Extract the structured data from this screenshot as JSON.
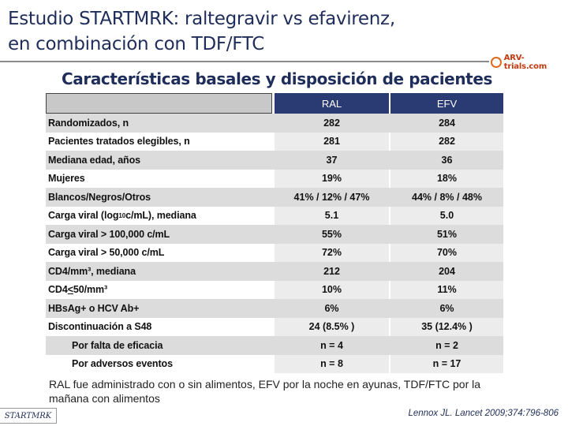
{
  "slide": {
    "title_line1": "Estudio STARTMRK: raltegravir vs efavirenz,",
    "title_line2": "en combinación con TDF/FTC",
    "subtitle": "Características basales y disposición de pacientes",
    "logo_text": "ARV-trials.com",
    "brand_badge": "STARTMRK",
    "footnote": "RAL fue administrado con o sin alimentos, EFV por la noche en ayunas, TDF/FTC por la mañana con alimentos",
    "citation": "Lennox JL. Lancet 2009;374:796-806"
  },
  "table": {
    "columns": [
      "RAL",
      "EFV"
    ],
    "rows": [
      {
        "label": "Randomizados, n",
        "ral": "282",
        "efv": "284"
      },
      {
        "label": "Pacientes tratados elegibles, n",
        "ral": "281",
        "efv": "282"
      },
      {
        "label": "Mediana edad, años",
        "ral": "37",
        "efv": "36"
      },
      {
        "label": "Mujeres",
        "ral": "19%",
        "efv": "18%"
      },
      {
        "label": "Blancos/Negros/Otros",
        "ral": "41% / 12% / 47%",
        "efv": "44% / 8% / 48%"
      },
      {
        "label_pre": "Carga viral (log",
        "label_sub": "10",
        "label_post": " c/mL), mediana",
        "ral": "5.1",
        "efv": "5.0"
      },
      {
        "label": "Carga viral > 100,000 c/mL",
        "ral": "55%",
        "efv": "51%"
      },
      {
        "label": "Carga viral > 50,000 c/mL",
        "ral": "72%",
        "efv": "70%"
      },
      {
        "label": "CD4/mm³, mediana",
        "ral": "212",
        "efv": "204"
      },
      {
        "label_pre": "CD4 ",
        "label_u": "<",
        "label_post": " 50/mm³",
        "ral": "10%",
        "efv": "11%"
      },
      {
        "label": "HBsAg+ o HCV Ab+",
        "ral": "6%",
        "efv": "6%"
      },
      {
        "label": "Discontinuación a S48",
        "ral": "24 (8.5% )",
        "efv": "35 (12.4% )"
      },
      {
        "label": "Por falta de eficacia",
        "ral": "n = 4",
        "efv": "n = 2"
      },
      {
        "label": "Por adversos eventos",
        "ral": "n = 8",
        "efv": "n = 17"
      }
    ]
  }
}
